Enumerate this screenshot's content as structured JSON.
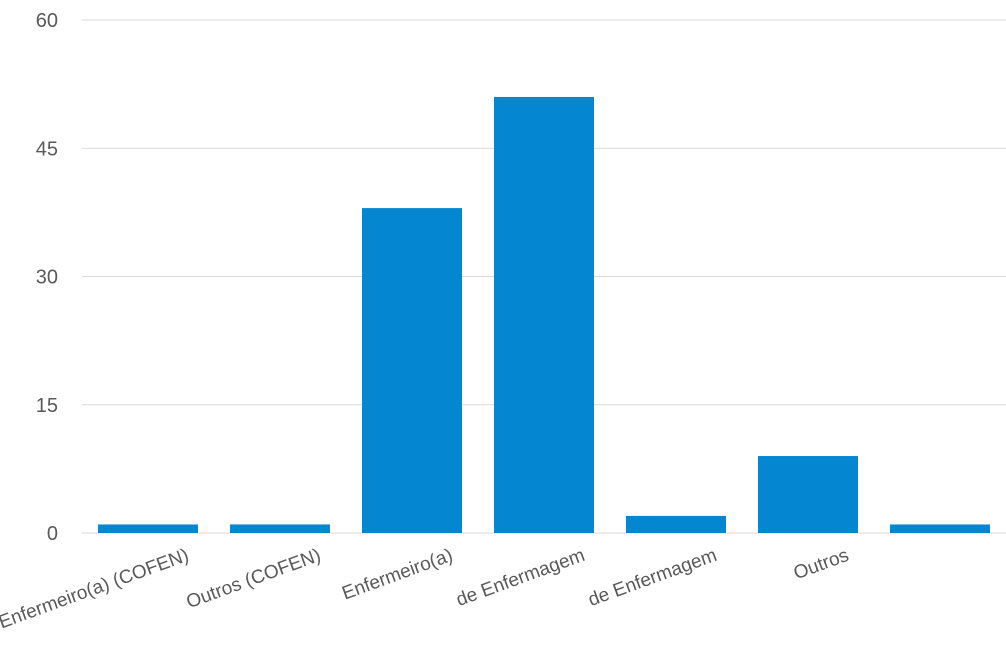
{
  "chart_data": {
    "type": "bar",
    "categories": [
      "Enfermeiro(a) (COFEN)",
      "Outros (COFEN)",
      "Enfermeiro(a)",
      "de Enfermagem",
      "de Enfermagem",
      "Outros",
      ""
    ],
    "values": [
      1,
      1,
      38,
      51,
      2,
      9,
      1
    ],
    "ylim": [
      0,
      60
    ],
    "yticks": [
      0,
      15,
      30,
      45,
      60
    ],
    "grid": true,
    "legend": "none",
    "title": "",
    "xlabel": "",
    "ylabel": "",
    "colors": {
      "bar": "#0487d0",
      "grid": "#d9d9d9",
      "text": "#595959"
    }
  }
}
